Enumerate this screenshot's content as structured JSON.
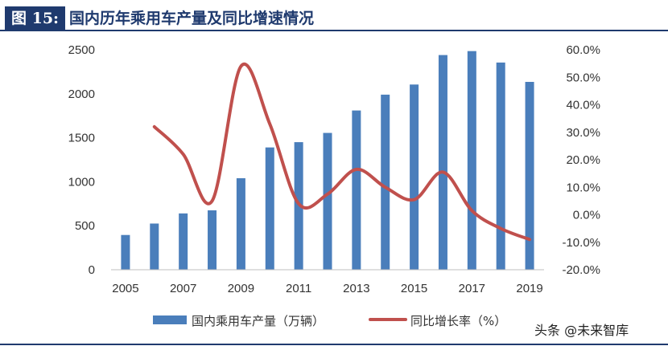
{
  "figure": {
    "tag": "图 15:",
    "title": "国内历年乘用车产量及同比增速情况",
    "title_color": "#1f3a6e"
  },
  "watermark": "头条 @未来智库",
  "chart_data": {
    "type": "bar",
    "title": "国内历年乘用车产量及同比增速情况",
    "categories": [
      "2005",
      "2006",
      "2007",
      "2008",
      "2009",
      "2010",
      "2011",
      "2012",
      "2013",
      "2014",
      "2015",
      "2016",
      "2017",
      "2018",
      "2019"
    ],
    "x_tick_labels": [
      "2005",
      "2007",
      "2009",
      "2011",
      "2013",
      "2015",
      "2017",
      "2019"
    ],
    "series": [
      {
        "name": "国内乘用车产量（万辆）",
        "type": "bar",
        "axis": "left",
        "color": "#4a7ebb",
        "values": [
          395,
          525,
          640,
          675,
          1040,
          1390,
          1450,
          1555,
          1810,
          1990,
          2105,
          2440,
          2485,
          2355,
          2135
        ]
      },
      {
        "name": "同比增长率（%）",
        "type": "line",
        "axis": "right",
        "color": "#c0504d",
        "values": [
          null,
          32.0,
          22.0,
          5.0,
          54.0,
          33.0,
          4.0,
          7.5,
          16.5,
          10.0,
          5.5,
          15.5,
          1.5,
          -5.0,
          -9.0
        ]
      }
    ],
    "y_left": {
      "ticks": [
        "0",
        "500",
        "1000",
        "1500",
        "2000",
        "2500"
      ],
      "ylim": [
        0,
        2500
      ]
    },
    "y_right": {
      "ticks": [
        "-20.0%",
        "-10.0%",
        "0.0%",
        "10.0%",
        "20.0%",
        "30.0%",
        "40.0%",
        "50.0%",
        "60.0%"
      ],
      "ylim": [
        -20,
        60
      ]
    },
    "grid": false,
    "legend_position": "bottom"
  }
}
